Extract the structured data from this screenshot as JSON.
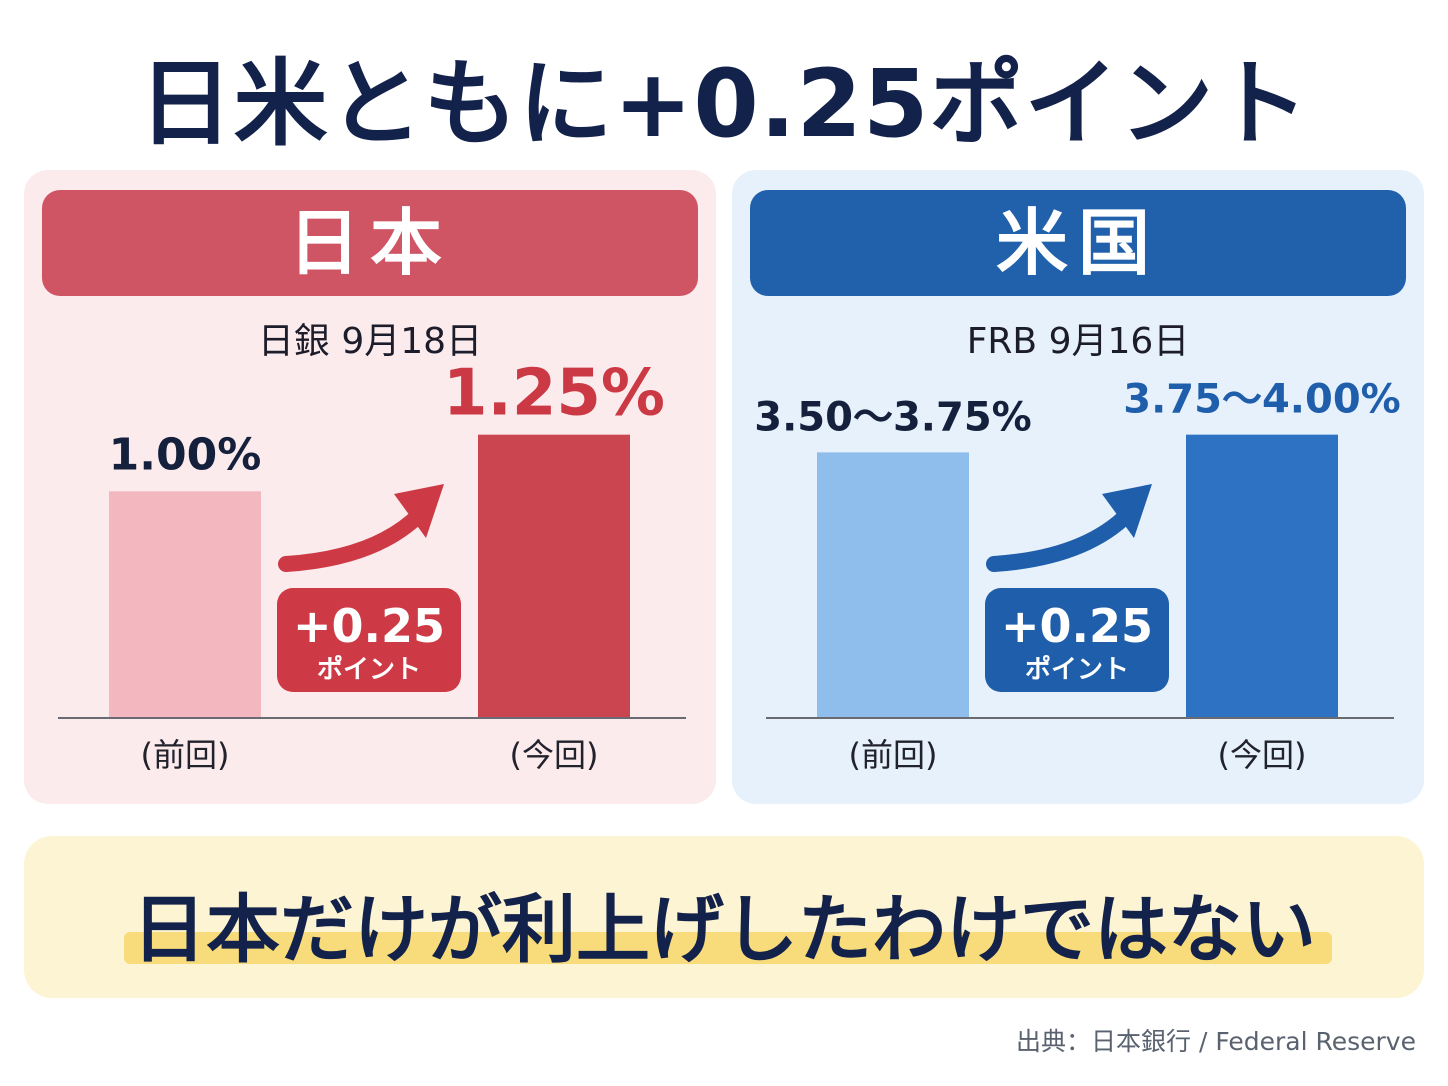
{
  "title": "日米ともに+0.25ポイント",
  "chart_data": [
    {
      "type": "bar",
      "panel_title": "日本",
      "subtitle": "日銀 9月18日",
      "categories": [
        "(前回)",
        "(今回)"
      ],
      "values": [
        1.0,
        1.25
      ],
      "value_labels": [
        "1.00%",
        "1.25%"
      ],
      "ylim": [
        0,
        1.5
      ],
      "change_label": "+0.25",
      "change_unit": "ポイント",
      "colors": {
        "header": "#cf5564",
        "previous": "#f3b8bf",
        "current": "#cb4550",
        "arrow": "#cd3a45",
        "badge": "#cd3a45",
        "value_current": "#cb3a44",
        "value_previous": "#15213c"
      }
    },
    {
      "type": "bar",
      "panel_title": "米国",
      "subtitle": "FRB 9月16日",
      "categories": [
        "(前回)",
        "(今回)"
      ],
      "values": [
        3.75,
        4.0
      ],
      "ranges": [
        [
          3.5,
          3.75
        ],
        [
          3.75,
          4.0
        ]
      ],
      "value_labels": [
        "3.50〜3.75%",
        "3.75〜4.00%"
      ],
      "ylim": [
        0,
        4.8
      ],
      "change_label": "+0.25",
      "change_unit": "ポイント",
      "colors": {
        "header": "#2160aa",
        "previous": "#8fbdec",
        "current": "#2e72c4",
        "arrow": "#1f5eaa",
        "badge": "#1f5eaa",
        "value_current": "#1f5eaa",
        "value_previous": "#15213c"
      }
    }
  ],
  "summary": "日本だけが利上げしたわけではない",
  "source": "出典：日本銀行 / Federal Reserve"
}
